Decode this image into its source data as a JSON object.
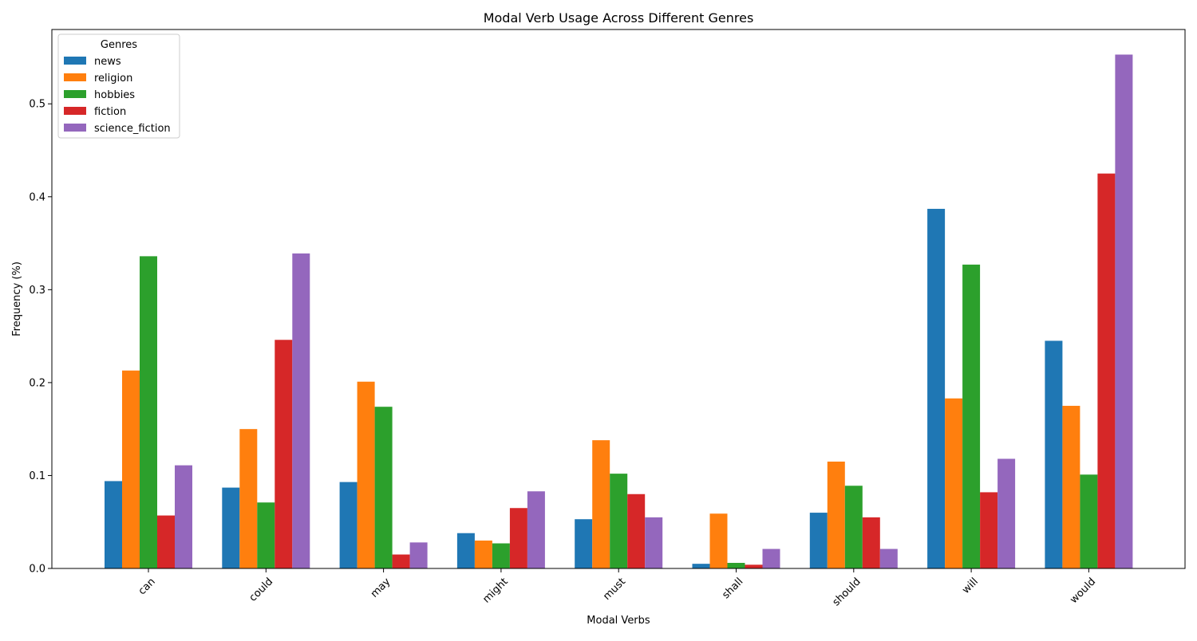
{
  "chart_data": {
    "type": "bar",
    "title": "Modal Verb Usage Across Different Genres",
    "xlabel": "Modal Verbs",
    "ylabel": "Frequency (%)",
    "ylim": [
      0,
      0.58
    ],
    "yticks": [
      0.0,
      0.1,
      0.2,
      0.3,
      0.4,
      0.5
    ],
    "ytick_labels": [
      "0.0",
      "0.1",
      "0.2",
      "0.3",
      "0.4",
      "0.5"
    ],
    "grid": false,
    "legend": {
      "title": "Genres",
      "placement": "top-left"
    },
    "categories": [
      "can",
      "could",
      "may",
      "might",
      "must",
      "shall",
      "should",
      "will",
      "would"
    ],
    "series": [
      {
        "name": "news",
        "color": "#1f77b4",
        "values": [
          0.094,
          0.087,
          0.093,
          0.038,
          0.053,
          0.005,
          0.06,
          0.387,
          0.245
        ]
      },
      {
        "name": "religion",
        "color": "#ff7f0e",
        "values": [
          0.213,
          0.15,
          0.201,
          0.03,
          0.138,
          0.059,
          0.115,
          0.183,
          0.175
        ]
      },
      {
        "name": "hobbies",
        "color": "#2ca02c",
        "values": [
          0.336,
          0.071,
          0.174,
          0.027,
          0.102,
          0.006,
          0.089,
          0.327,
          0.101
        ]
      },
      {
        "name": "fiction",
        "color": "#d62728",
        "values": [
          0.057,
          0.246,
          0.015,
          0.065,
          0.08,
          0.004,
          0.055,
          0.082,
          0.425
        ]
      },
      {
        "name": "science_fiction",
        "color": "#9467bd",
        "values": [
          0.111,
          0.339,
          0.028,
          0.083,
          0.055,
          0.021,
          0.021,
          0.118,
          0.553
        ]
      }
    ]
  }
}
